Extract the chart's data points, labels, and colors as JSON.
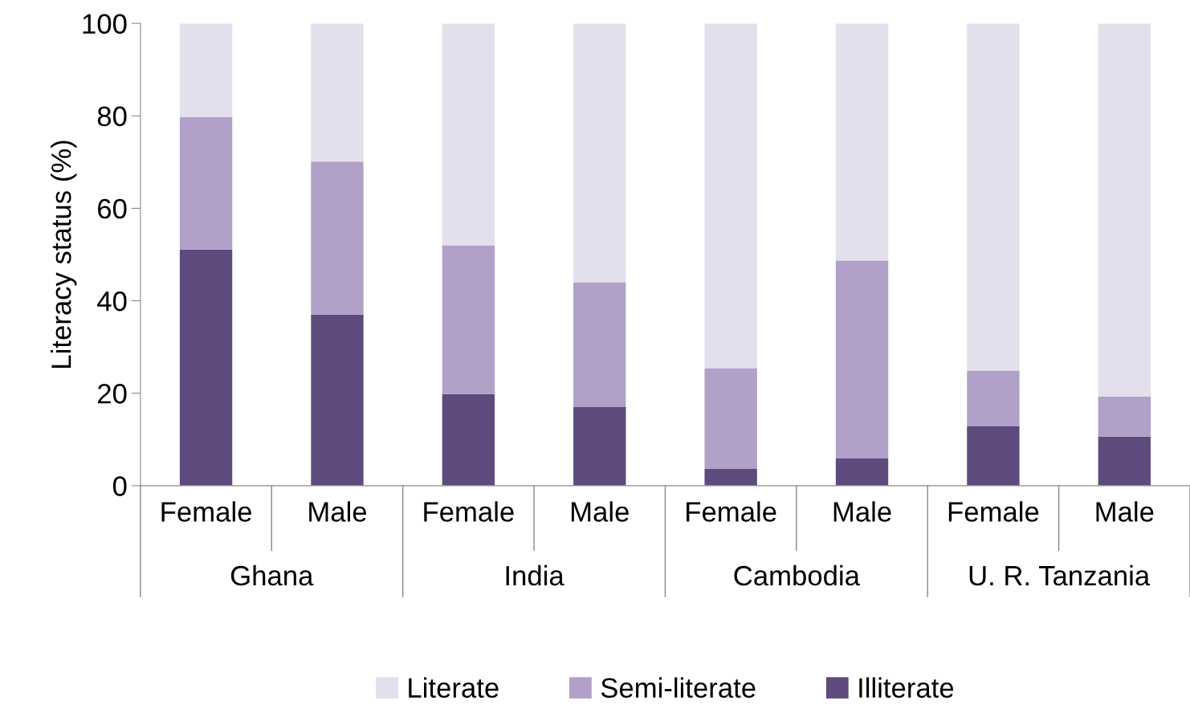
{
  "chart_data": {
    "type": "bar",
    "stacked": true,
    "ylabel": "Literacy status (%)",
    "categories": [
      "Female",
      "Male",
      "Female",
      "Male",
      "Female",
      "Male",
      "Female",
      "Male"
    ],
    "annotations": [
      "Ghana",
      "India",
      "Cambodia",
      "U. R. Tanzania"
    ],
    "series": [
      {
        "name": "Illiterate",
        "color": "#5e4a7d",
        "values": [
          51.1,
          37.0,
          19.8,
          17.0,
          3.7,
          5.9,
          12.9,
          10.6
        ]
      },
      {
        "name": "Semi-literate",
        "color": "#b1a0c7",
        "values": [
          28.6,
          33.1,
          32.2,
          27.0,
          21.7,
          42.8,
          12.0,
          8.7
        ]
      },
      {
        "name": "Literate",
        "color": "#e4dfec",
        "values": [
          20.3,
          29.9,
          48.0,
          56.0,
          74.6,
          51.3,
          75.1,
          80.7
        ]
      }
    ],
    "ylim": [
      0,
      100
    ],
    "yticks": [
      0,
      20,
      40,
      60,
      80,
      100
    ],
    "grid": false,
    "legend": "bottom"
  }
}
